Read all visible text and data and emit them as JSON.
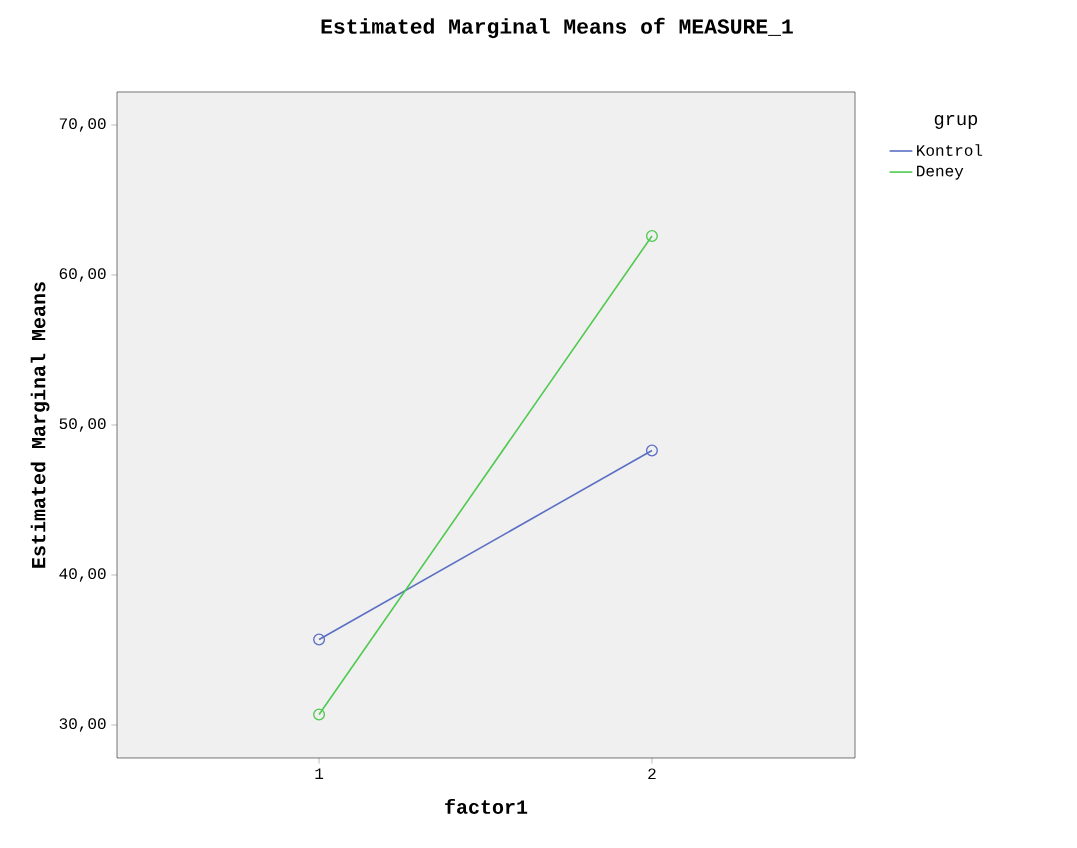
{
  "chart_data": {
    "type": "line",
    "title": "Estimated Marginal Means of MEASURE_1",
    "xlabel": "factor1",
    "ylabel": "Estimated Marginal Means",
    "legend_title": "grup",
    "categories": [
      "1",
      "2"
    ],
    "series": [
      {
        "name": "Kontrol",
        "color": "#5b6fc4",
        "values": [
          35.7,
          48.3
        ]
      },
      {
        "name": "Deney",
        "color": "#4fc94f",
        "values": [
          30.7,
          62.6
        ]
      }
    ],
    "ylim": [
      27.8,
      72.2
    ],
    "yticks": [
      {
        "value": 30,
        "label": "30,00"
      },
      {
        "value": 40,
        "label": "40,00"
      },
      {
        "value": 50,
        "label": "50,00"
      },
      {
        "value": 60,
        "label": "60,00"
      },
      {
        "value": 70,
        "label": "70,00"
      }
    ],
    "marker": "circle",
    "legend": "top right",
    "grid": false
  }
}
